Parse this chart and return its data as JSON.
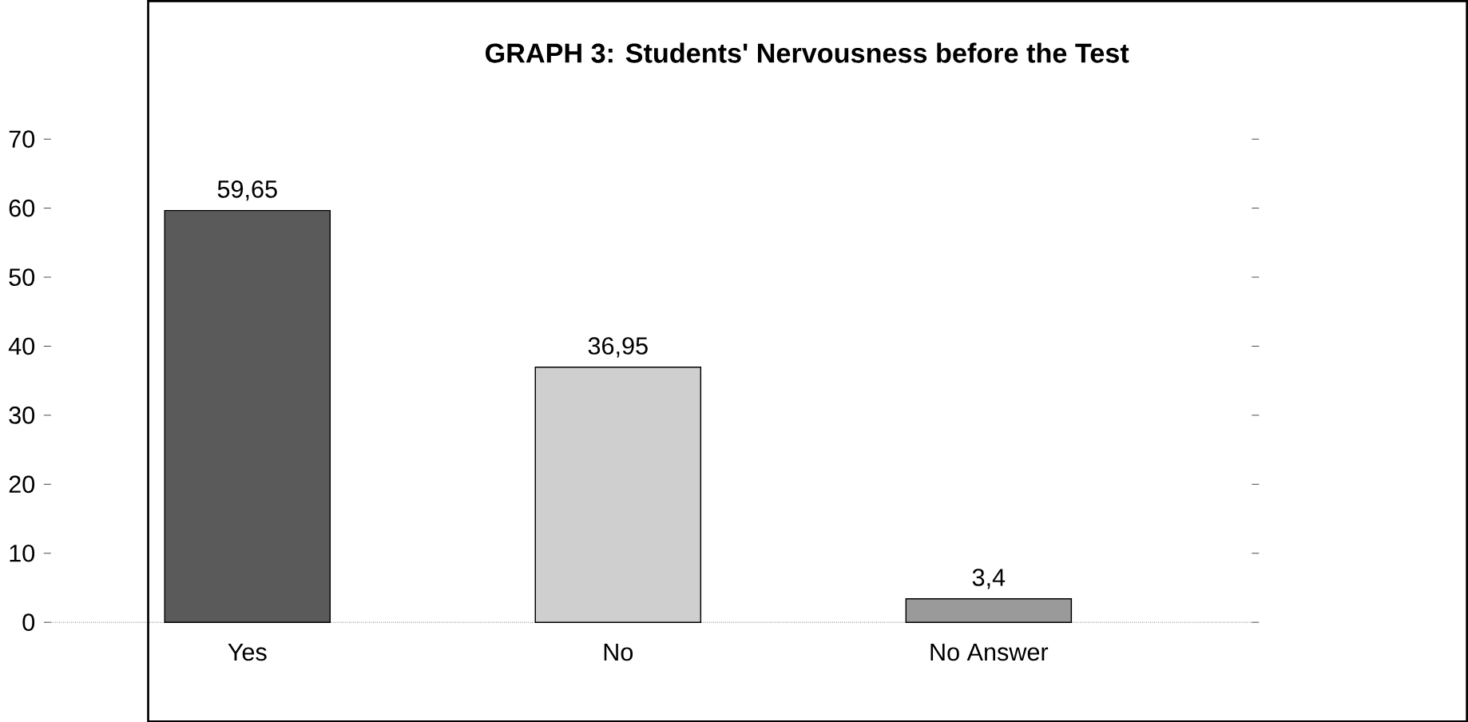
{
  "chart_data": {
    "type": "bar",
    "title": "GRAPH 3: Students' Nervousness before the Test",
    "categories": [
      "Yes",
      "No",
      "No Answer"
    ],
    "values": [
      59.65,
      36.95,
      3.4
    ],
    "colors": [
      "#5a5a5a",
      "#cfcfcf",
      "#9a9a9a"
    ],
    "value_labels": [
      "59,65",
      "36,95",
      "3,4"
    ],
    "ylim": [
      0,
      70
    ],
    "yticks": [
      0,
      10,
      20,
      30,
      40,
      50,
      60,
      70
    ]
  }
}
